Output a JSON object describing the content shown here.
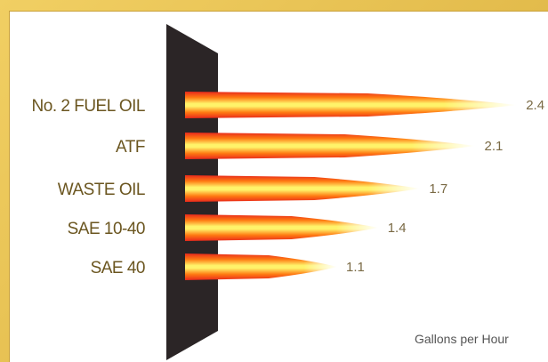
{
  "chart_data": {
    "type": "bar",
    "orientation": "horizontal",
    "categories": [
      "No. 2 FUEL OIL",
      "ATF",
      "WASTE OIL",
      "SAE 10-40",
      "SAE 40"
    ],
    "values": [
      2.4,
      2.1,
      1.7,
      1.4,
      1.1
    ],
    "value_labels": [
      "2.4",
      "2.1",
      "1.7",
      "1.4",
      "1.1"
    ],
    "xlabel": "Gallons per Hour",
    "xlim": [
      0,
      2.5
    ],
    "grid": false,
    "legend": "none"
  },
  "colors": {
    "frame": "#e7c04f",
    "panel": "#ffffff",
    "wall": "#2b2526",
    "flame_core": "#fff36a",
    "flame_mid": "#ff9a1a",
    "flame_outer": "#e8281c",
    "label_text": "#6b5620"
  }
}
